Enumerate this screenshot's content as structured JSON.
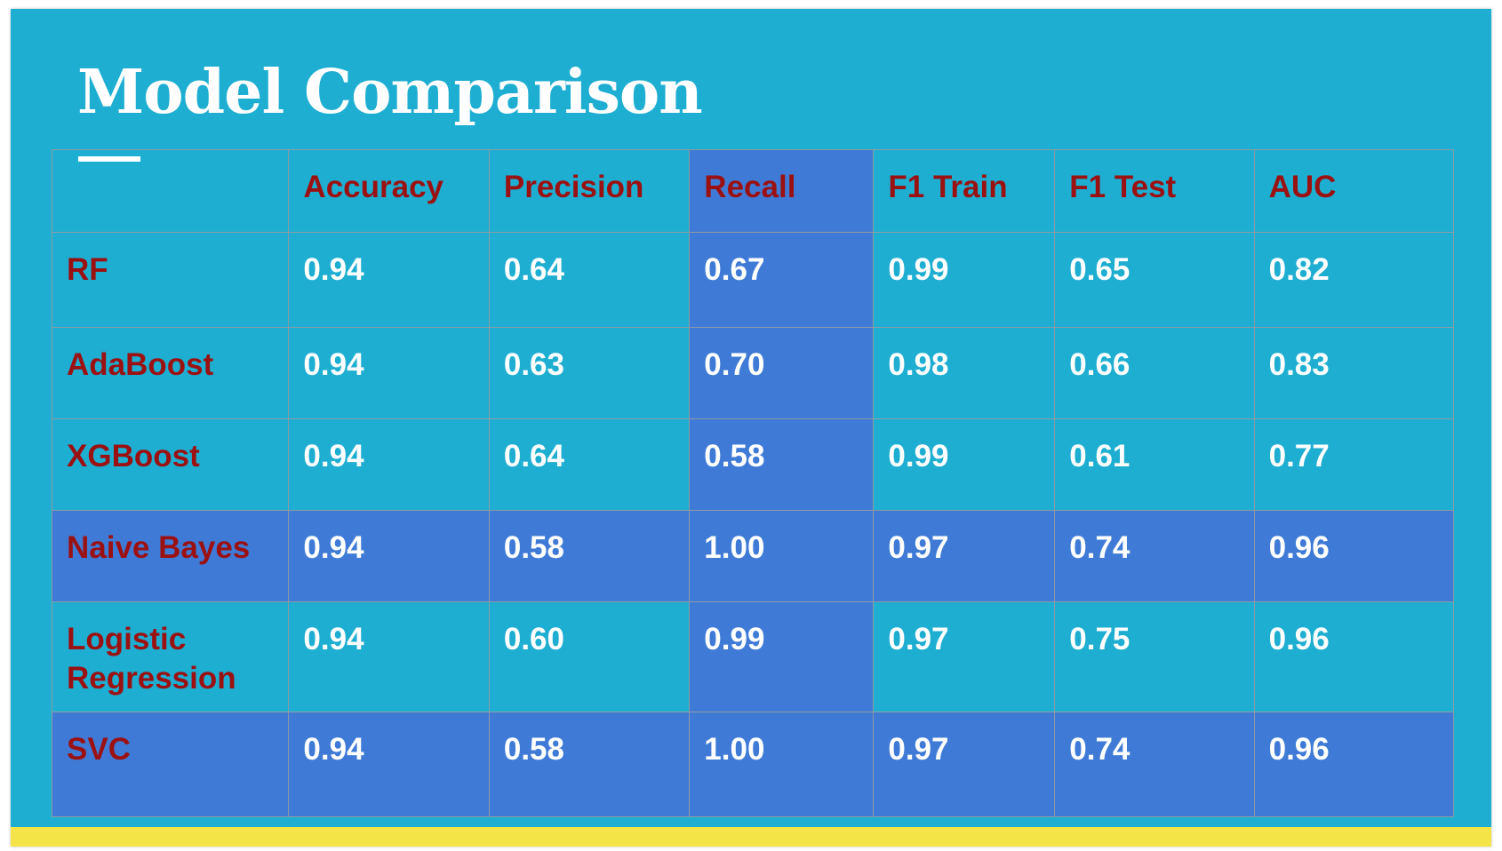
{
  "slide": {
    "title": "Model Comparison",
    "colors": {
      "background": "#1eaed1",
      "highlight": "#3f7bd6",
      "label_text": "#9b1111",
      "value_text": "#ffffff",
      "accent_bar": "#f5e447"
    }
  },
  "table": {
    "columns": [
      "",
      "Accuracy",
      "Precision",
      "Recall",
      "F1 Train",
      "F1 Test",
      "AUC"
    ],
    "rows": [
      {
        "model": "RF",
        "values": [
          "0.94",
          "0.64",
          "0.67",
          "0.99",
          "0.65",
          "0.82"
        ]
      },
      {
        "model": "AdaBoost",
        "values": [
          "0.94",
          "0.63",
          "0.70",
          "0.98",
          "0.66",
          "0.83"
        ]
      },
      {
        "model": "XGBoost",
        "values": [
          "0.94",
          "0.64",
          "0.58",
          "0.99",
          "0.61",
          "0.77"
        ]
      },
      {
        "model": "Naive Bayes",
        "values": [
          "0.94",
          "0.58",
          "1.00",
          "0.97",
          "0.74",
          "0.96"
        ]
      },
      {
        "model": "Logistic Regression",
        "values": [
          "0.94",
          "0.60",
          "0.99",
          "0.97",
          "0.75",
          "0.96"
        ]
      },
      {
        "model": "SVC",
        "values": [
          "0.94",
          "0.58",
          "1.00",
          "0.97",
          "0.74",
          "0.96"
        ]
      }
    ]
  }
}
